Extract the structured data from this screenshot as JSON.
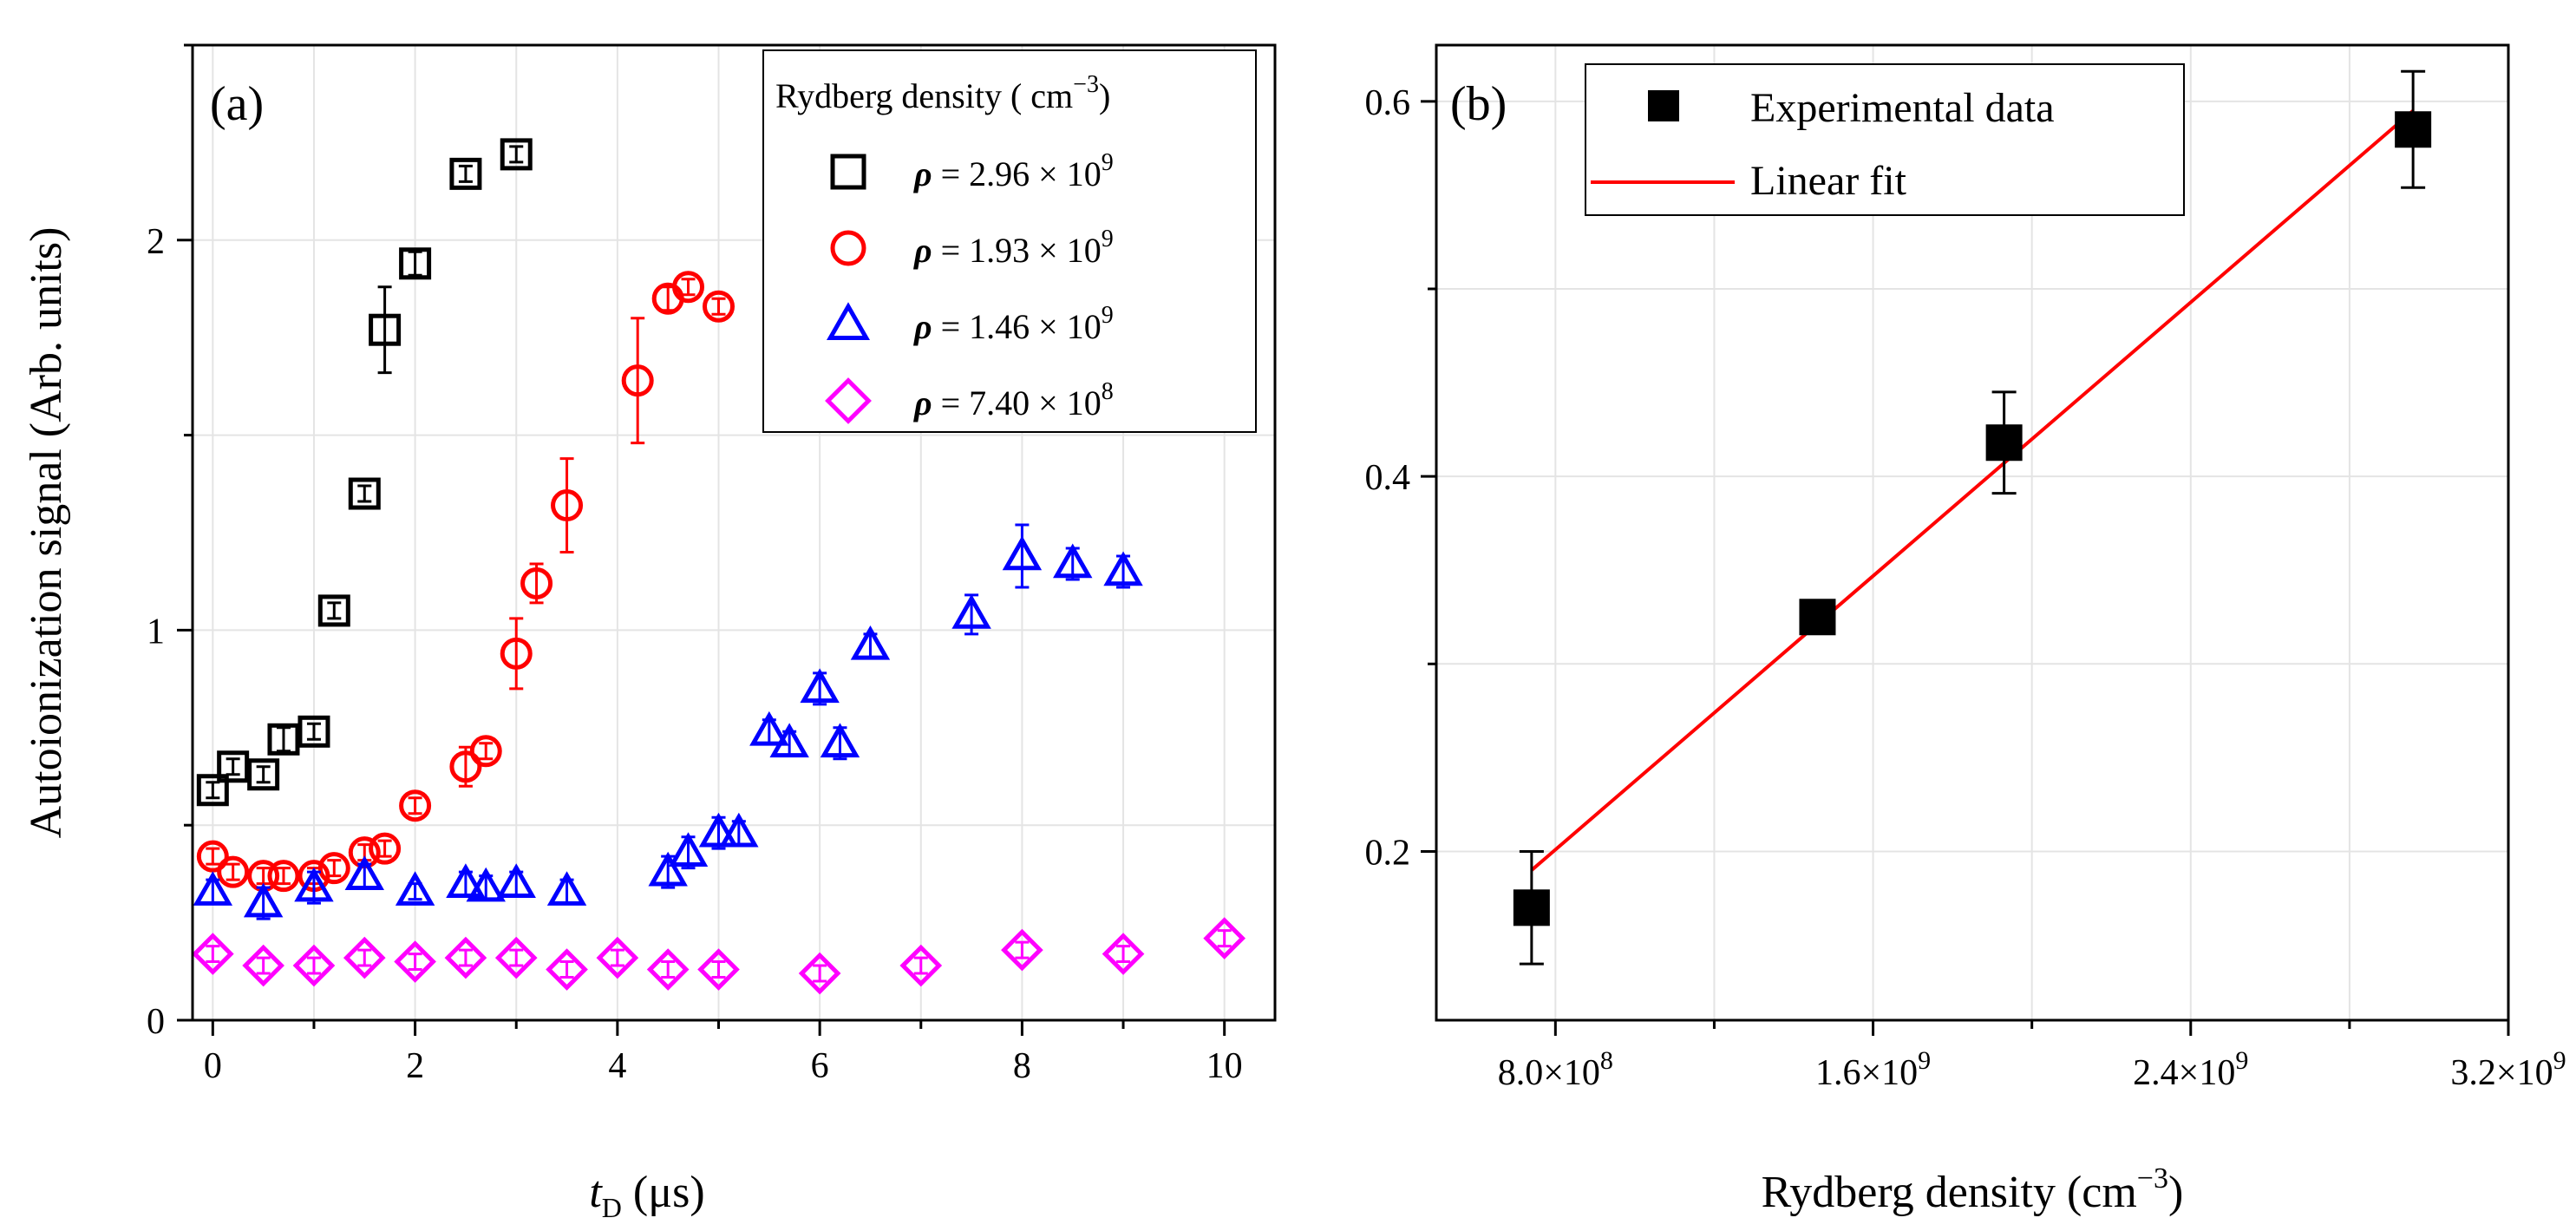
{
  "figure": {
    "panel_a_label": "(a)",
    "panel_b_label": "(b)"
  },
  "chart_data": [
    {
      "type": "scatter",
      "panel": "(a)",
      "xlabel_main": "t",
      "xlabel_sub": "D",
      "xlabel_unit": " (μs)",
      "ylabel": "Autoionization signal (Arb. units)",
      "xlim": [
        -0.2,
        10.5
      ],
      "ylim": [
        0,
        2.5
      ],
      "xticks": [
        0,
        2,
        4,
        6,
        8,
        10
      ],
      "yticks": [
        0,
        1,
        2
      ],
      "grid": true,
      "legend_position": "top-right",
      "legend_title": "Rydberg density ( cm",
      "legend_title_exp": "−3",
      "legend_title_end": ")",
      "series": [
        {
          "name": "2.96",
          "rho": "ρ",
          "label_mid": " = 2.96 × 10",
          "exp": "9",
          "marker": "square",
          "color": "#000000",
          "points": [
            [
              0,
              0.59,
              0.02
            ],
            [
              0.2,
              0.65,
              0.02
            ],
            [
              0.5,
              0.63,
              0.02
            ],
            [
              0.7,
              0.72,
              0.03
            ],
            [
              1.0,
              0.74,
              0.02
            ],
            [
              1.2,
              1.05,
              0.02
            ],
            [
              1.5,
              1.35,
              0.02
            ],
            [
              1.7,
              1.77,
              0.11
            ],
            [
              2.0,
              1.94,
              0.03
            ],
            [
              2.5,
              2.17,
              0.02
            ],
            [
              3.0,
              2.22,
              0.02
            ]
          ]
        },
        {
          "name": "1.93",
          "rho": "ρ",
          "label_mid": " = 1.93 × 10",
          "exp": "9",
          "marker": "circle",
          "color": "#ff0000",
          "points": [
            [
              0,
              0.42,
              0.02
            ],
            [
              0.2,
              0.38,
              0.02
            ],
            [
              0.5,
              0.37,
              0.02
            ],
            [
              0.7,
              0.37,
              0.02
            ],
            [
              1.0,
              0.37,
              0.02
            ],
            [
              1.2,
              0.39,
              0.02
            ],
            [
              1.5,
              0.43,
              0.02
            ],
            [
              1.7,
              0.44,
              0.02
            ],
            [
              2.0,
              0.55,
              0.02
            ],
            [
              2.5,
              0.65,
              0.05
            ],
            [
              2.7,
              0.69,
              0.02
            ],
            [
              3.0,
              0.94,
              0.09
            ],
            [
              3.2,
              1.12,
              0.05
            ],
            [
              3.5,
              1.32,
              0.12
            ],
            [
              4.2,
              1.64,
              0.16
            ],
            [
              4.5,
              1.85,
              0.03
            ],
            [
              4.7,
              1.88,
              0.02
            ],
            [
              5.0,
              1.83,
              0.02
            ]
          ]
        },
        {
          "name": "1.46",
          "rho": "ρ",
          "label_mid": " = 1.46 × 10",
          "exp": "9",
          "marker": "triangle",
          "color": "#0000ff",
          "points": [
            [
              0,
              0.33,
              0.03
            ],
            [
              0.5,
              0.3,
              0.04
            ],
            [
              1.0,
              0.34,
              0.04
            ],
            [
              1.5,
              0.37,
              0.03
            ],
            [
              2.0,
              0.33,
              0.02
            ],
            [
              2.5,
              0.35,
              0.03
            ],
            [
              2.7,
              0.34,
              0.03
            ],
            [
              3.0,
              0.35,
              0.03
            ],
            [
              3.5,
              0.33,
              0.03
            ],
            [
              4.5,
              0.38,
              0.04
            ],
            [
              4.7,
              0.43,
              0.04
            ],
            [
              5.0,
              0.48,
              0.04
            ],
            [
              5.2,
              0.48,
              0.03
            ],
            [
              5.5,
              0.74,
              0.03
            ],
            [
              5.7,
              0.71,
              0.03
            ],
            [
              6.0,
              0.85,
              0.04
            ],
            [
              6.2,
              0.71,
              0.04
            ],
            [
              6.5,
              0.96,
              0.03
            ],
            [
              7.5,
              1.04,
              0.05
            ],
            [
              8.0,
              1.19,
              0.08
            ],
            [
              8.5,
              1.17,
              0.04
            ],
            [
              9.0,
              1.15,
              0.04
            ]
          ]
        },
        {
          "name": "7.40",
          "rho": "ρ",
          "label_mid": " = 7.40 × 10",
          "exp": "8",
          "marker": "diamond",
          "color": "#ff00ff",
          "points": [
            [
              0,
              0.17,
              0.02
            ],
            [
              0.5,
              0.14,
              0.02
            ],
            [
              1.0,
              0.14,
              0.02
            ],
            [
              1.5,
              0.16,
              0.02
            ],
            [
              2.0,
              0.15,
              0.02
            ],
            [
              2.5,
              0.16,
              0.02
            ],
            [
              3.0,
              0.16,
              0.02
            ],
            [
              3.5,
              0.13,
              0.02
            ],
            [
              4.0,
              0.16,
              0.02
            ],
            [
              4.5,
              0.13,
              0.02
            ],
            [
              5.0,
              0.13,
              0.02
            ],
            [
              6.0,
              0.12,
              0.02
            ],
            [
              7.0,
              0.14,
              0.02
            ],
            [
              8.0,
              0.18,
              0.02
            ],
            [
              9.0,
              0.17,
              0.02
            ],
            [
              10.0,
              0.21,
              0.02
            ]
          ]
        }
      ]
    },
    {
      "type": "scatter",
      "panel": "(b)",
      "xlabel": "Rydberg density (cm",
      "xlabel_exp": "−3",
      "xlabel_end": ")",
      "ylabel": "",
      "xlim": [
        0.5,
        3.2
      ],
      "ylim": [
        0.11,
        0.63
      ],
      "xticks": [
        {
          "value": 0.8,
          "mant": "8.0×10",
          "exp": "8"
        },
        {
          "value": 1.6,
          "mant": "1.6×10",
          "exp": "9"
        },
        {
          "value": 2.4,
          "mant": "2.4×10",
          "exp": "9"
        },
        {
          "value": 3.2,
          "mant": "3.2×10",
          "exp": "9"
        }
      ],
      "yticks": [
        0.2,
        0.4,
        0.6
      ],
      "x_unit_note": "×10^9 cm^-3",
      "grid": true,
      "legend_position": "top-left",
      "series": [
        {
          "name": "Experimental data",
          "marker": "filled-square",
          "color": "#000000",
          "points": [
            [
              0.74,
              0.17,
              0.03
            ],
            [
              1.46,
              0.325,
              0.005
            ],
            [
              1.93,
              0.418,
              0.027
            ],
            [
              2.96,
              0.585,
              0.031
            ]
          ]
        },
        {
          "name": "Linear fit",
          "marker": "line",
          "color": "#ff0000",
          "line": [
            [
              0.74,
              0.19
            ],
            [
              2.96,
              0.595
            ]
          ]
        }
      ]
    }
  ]
}
